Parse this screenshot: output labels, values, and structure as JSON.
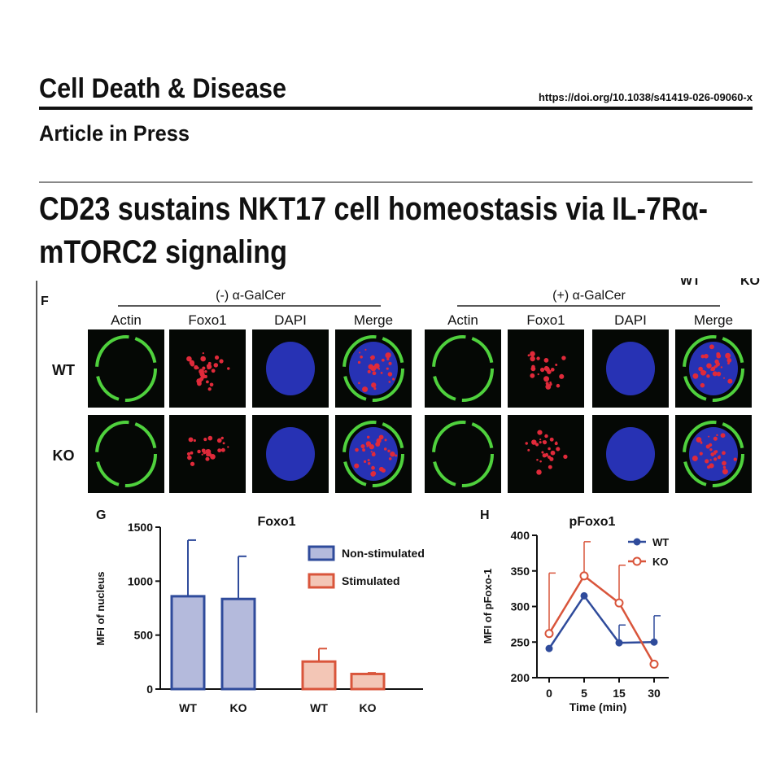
{
  "header": {
    "journal": "Cell Death & Disease",
    "doi": "https://doi.org/10.1038/s41419-026-09060-x",
    "status": "Article in Press"
  },
  "title_lines": [
    "CD23 sustains NKT17 cell homeostasis via IL-7Rα-",
    "mTORC2 signaling"
  ],
  "panel_f": {
    "label": "F",
    "cropped_labels": [
      "WT",
      "KO"
    ],
    "groups": [
      "(-) α-GalCer",
      "(+) α-GalCer"
    ],
    "channels": [
      "Actin",
      "Foxo1",
      "DAPI",
      "Merge",
      "Actin",
      "Foxo1",
      "DAPI",
      "Merge"
    ],
    "rows": [
      "WT",
      "KO"
    ]
  },
  "chart_data": [
    {
      "type": "bar",
      "panel": "G",
      "title": "Foxo1",
      "y_label": "MFI of nucleus",
      "categories": [
        "WT",
        "KO",
        "WT",
        "KO"
      ],
      "series": [
        {
          "name": "Non-stimulated",
          "color": "#b4badc",
          "edge": "#2f4b9b",
          "values": [
            860,
            835,
            null,
            null
          ],
          "errors": [
            520,
            395,
            null,
            null
          ]
        },
        {
          "name": "Stimulated",
          "color": "#f3c6b6",
          "edge": "#d9553b",
          "values": [
            null,
            null,
            255,
            140
          ],
          "errors": [
            null,
            null,
            120,
            10
          ]
        }
      ],
      "ylim": [
        0,
        1500
      ],
      "yticks": [
        0,
        500,
        1000,
        1500
      ],
      "legend": "upper right"
    },
    {
      "type": "line",
      "panel": "H",
      "title": "pFoxo1",
      "y_label": "MFI of  pFoxo-1",
      "x_label": "Time (min)",
      "categories": [
        "0",
        "5",
        "15",
        "30"
      ],
      "series": [
        {
          "name": "WT",
          "color": "#2f4b9b",
          "values": [
            241,
            315,
            249,
            250
          ],
          "errors": [
            null,
            null,
            25,
            37
          ]
        },
        {
          "name": "KO",
          "color": "#d9553b",
          "values": [
            262,
            343,
            305,
            219
          ],
          "errors": [
            85,
            48,
            53,
            null
          ]
        }
      ],
      "ylim": [
        200,
        400
      ],
      "yticks": [
        200,
        250,
        300,
        350,
        400
      ],
      "legend": "upper right"
    }
  ]
}
